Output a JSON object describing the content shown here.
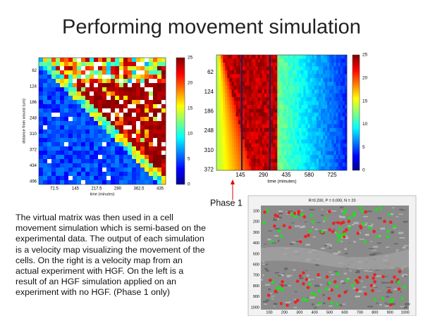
{
  "title": "Performing movement simulation",
  "left_map": {
    "y_axis_label": "distance from wound (um)",
    "x_axis_label": "time (minutes)",
    "yticks": [
      "62",
      "124",
      "186",
      "248",
      "310",
      "372",
      "434",
      "496"
    ],
    "xticks": [
      "72.5",
      "145",
      "217.5",
      "290",
      "362.5",
      "435"
    ],
    "colorbar_ticks": [
      "25",
      "20",
      "15",
      "10",
      "5",
      "0"
    ]
  },
  "right_map": {
    "x_axis_label": "time (minutes)",
    "yticks": [
      "62",
      "124",
      "186",
      "248",
      "310",
      "372"
    ],
    "xticks": [
      "145",
      "290",
      "435",
      "580",
      "725"
    ],
    "colorbar_ticks": [
      "25",
      "20",
      "15",
      "10",
      "5",
      "0"
    ]
  },
  "phase_label": "Phase 1",
  "micrograph": {
    "title": "R=0.200, P = 0.000, N = 20",
    "yticks": [
      "100",
      "200",
      "300",
      "400",
      "500",
      "600",
      "700",
      "800",
      "900",
      "1000"
    ],
    "xticks": [
      "100",
      "200",
      "300",
      "400",
      "500",
      "600",
      "700",
      "800",
      "900",
      "1000"
    ]
  },
  "body_text": "The virtual matrix was then used in a cell movement simulation which is semi-based on the experimental data. The output of each simulation is a velocity map visualizing the movement of the cells. On the right is a velocity map from an actual experiment with HGF. On the left is a result of an HGF simulation applied on an experiment with no HGF. (Phase 1 only)"
}
